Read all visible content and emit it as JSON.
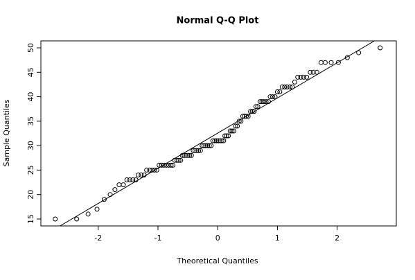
{
  "chart_data": {
    "type": "scatter",
    "title": "Normal Q-Q Plot",
    "x_label": "Theoretical Quantiles",
    "y_label": "Sample Quantiles",
    "x": [
      -2.72,
      -2.36,
      -2.17,
      -2.02,
      -1.9,
      -1.8,
      -1.72,
      -1.65,
      -1.58,
      -1.52,
      -1.47,
      -1.42,
      -1.37,
      -1.33,
      -1.28,
      -1.23,
      -1.19,
      -1.14,
      -1.1,
      -1.06,
      -1.02,
      -0.98,
      -0.94,
      -0.9,
      -0.86,
      -0.82,
      -0.78,
      -0.75,
      -0.72,
      -0.68,
      -0.65,
      -0.62,
      -0.59,
      -0.56,
      -0.53,
      -0.5,
      -0.47,
      -0.44,
      -0.41,
      -0.38,
      -0.35,
      -0.32,
      -0.29,
      -0.26,
      -0.23,
      -0.2,
      -0.17,
      -0.14,
      -0.11,
      -0.08,
      -0.05,
      -0.02,
      0.01,
      0.04,
      0.07,
      0.1,
      0.12,
      0.15,
      0.18,
      0.21,
      0.24,
      0.27,
      0.3,
      0.33,
      0.36,
      0.39,
      0.42,
      0.45,
      0.48,
      0.51,
      0.55,
      0.58,
      0.61,
      0.64,
      0.67,
      0.71,
      0.74,
      0.77,
      0.81,
      0.85,
      0.88,
      0.92,
      0.96,
      1.0,
      1.04,
      1.08,
      1.12,
      1.16,
      1.21,
      1.25,
      1.29,
      1.34,
      1.39,
      1.44,
      1.49,
      1.55,
      1.6,
      1.66,
      1.73,
      1.8,
      1.9,
      2.02,
      2.17,
      2.36,
      2.72
    ],
    "y": [
      15,
      15,
      16,
      17,
      19,
      20,
      21,
      22,
      22,
      23,
      23,
      23,
      23,
      24,
      24,
      24,
      25,
      25,
      25,
      25,
      25,
      26,
      26,
      26,
      26,
      26,
      26,
      26,
      27,
      27,
      27,
      27,
      28,
      28,
      28,
      28,
      28,
      28,
      29,
      29,
      29,
      29,
      29,
      30,
      30,
      30,
      30,
      30,
      30,
      31,
      31,
      31,
      31,
      31,
      31,
      31,
      32,
      32,
      32,
      33,
      33,
      33,
      34,
      34,
      35,
      35,
      36,
      36,
      36,
      36,
      37,
      37,
      37,
      38,
      38,
      39,
      39,
      39,
      39,
      39,
      40,
      40,
      40,
      41,
      41,
      42,
      42,
      42,
      42,
      42,
      43,
      44,
      44,
      44,
      44,
      45,
      45,
      45,
      47,
      47,
      47,
      47,
      48,
      49,
      50
    ],
    "qqline": {
      "intercept": 32.56,
      "slope": 7.19
    },
    "xlim": [
      -2.96,
      2.99
    ],
    "ylim": [
      13.58,
      51.42
    ],
    "xticks": [
      -2,
      -1,
      0,
      1,
      2
    ],
    "yticks": [
      15,
      20,
      25,
      30,
      35,
      40,
      45,
      50
    ],
    "grid": false,
    "color": "#000000"
  }
}
